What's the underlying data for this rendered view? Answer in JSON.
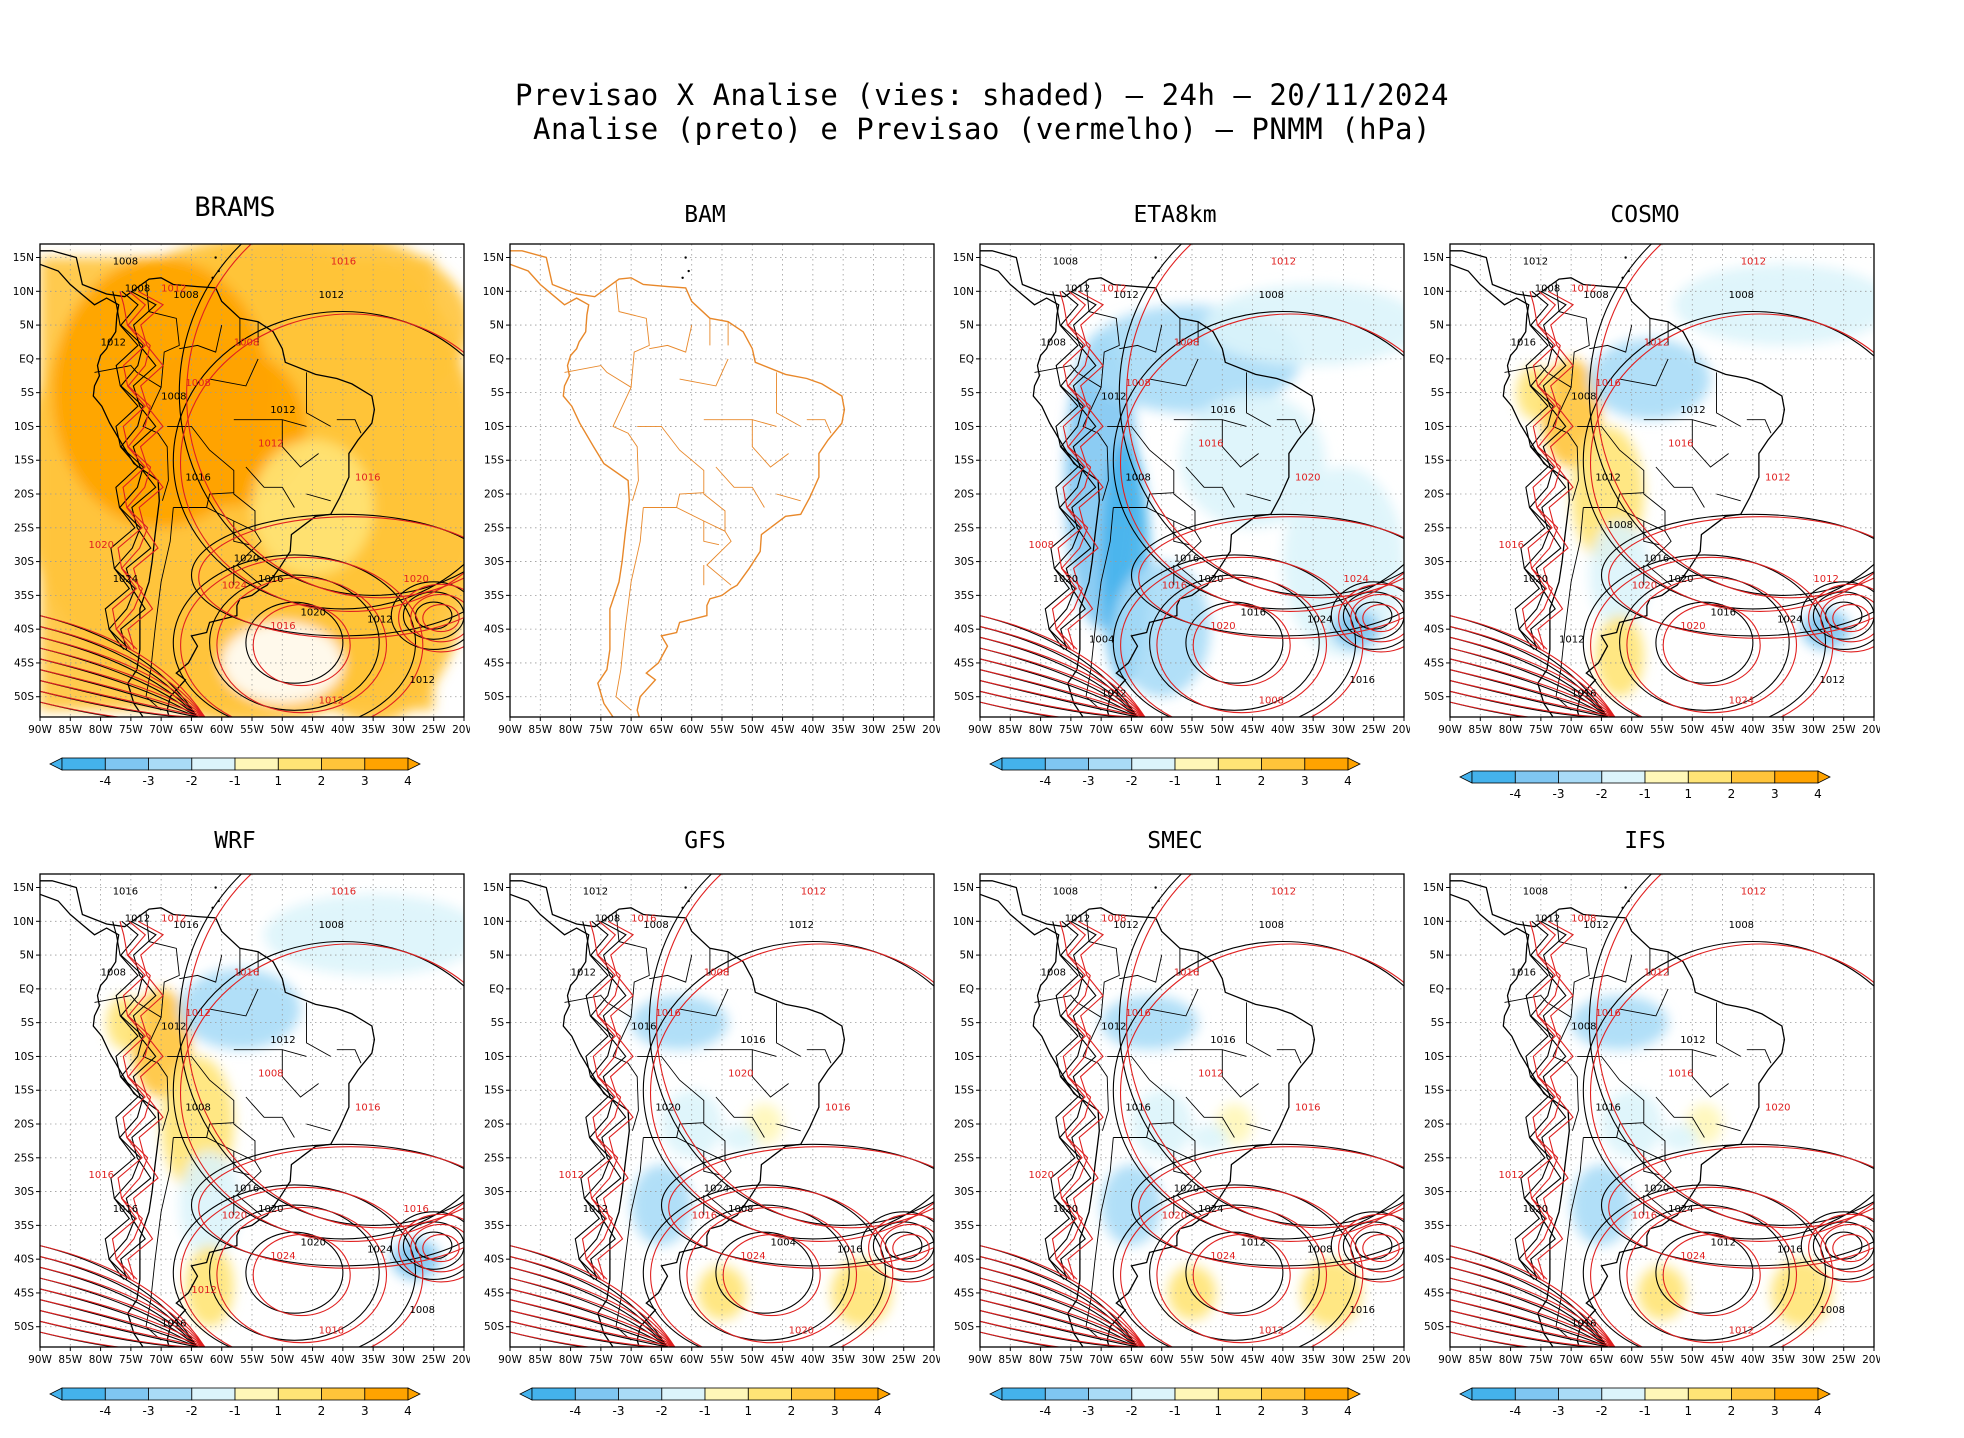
{
  "title": {
    "line1": "Previsao X Analise (vies: shaded) – 24h – 20/11/2024",
    "line2": "Analise (preto) e Previsao (vermelho) – PNMM (hPa)"
  },
  "axes": {
    "lat_labels": [
      "15N",
      "10N",
      "5N",
      "EQ",
      "5S",
      "10S",
      "15S",
      "20S",
      "25S",
      "30S",
      "35S",
      "40S",
      "45S",
      "50S"
    ],
    "lon_labels": [
      "90W",
      "85W",
      "80W",
      "75W",
      "70W",
      "65W",
      "60W",
      "55W",
      "50W",
      "45W",
      "40W",
      "35W",
      "30W",
      "25W",
      "20W"
    ]
  },
  "colorbar": {
    "ticks": [
      "-4",
      "-3",
      "-2",
      "-1",
      "1",
      "2",
      "3",
      "4"
    ],
    "colors": [
      "#44b2ec",
      "#7fc6f2",
      "#a9dbf7",
      "#dcf4fb",
      "#ffffff",
      "#fff7b8",
      "#ffe476",
      "#ffc43a",
      "#ffa300"
    ]
  },
  "contour_labels": {
    "analysis_color": "#000000",
    "forecast_color": "#e02020"
  },
  "panels": [
    {
      "id": "brams",
      "title": "BRAMS",
      "has_colorbar": true,
      "bias": "warm-strong",
      "black_labels": [
        "1008",
        "1008",
        "1008",
        "1012",
        "1012",
        "1008",
        "1012",
        "1016",
        "1020",
        "1024",
        "1016",
        "1020",
        "1012",
        "1012"
      ],
      "red_labels": [
        "1016",
        "1012",
        "1008",
        "1008",
        "1012",
        "1020",
        "1016",
        "1024",
        "1016",
        "1012",
        "1020"
      ]
    },
    {
      "id": "bam",
      "title": "BAM",
      "has_colorbar": false,
      "bias": "none",
      "black_labels": [],
      "red_labels": []
    },
    {
      "id": "eta8km",
      "title": "ETA8km",
      "has_colorbar": true,
      "bias": "cool",
      "black_labels": [
        "1008",
        "1012",
        "1012",
        "1008",
        "1008",
        "1012",
        "1016",
        "1008",
        "1016",
        "1020",
        "1020",
        "1016",
        "1024",
        "1016",
        "1012",
        "1004"
      ],
      "red_labels": [
        "1012",
        "1012",
        "1008",
        "1008",
        "1016",
        "1008",
        "1020",
        "1016",
        "1020",
        "1008",
        "1024"
      ]
    },
    {
      "id": "cosmo",
      "title": "COSMO",
      "has_colorbar": true,
      "bias": "mixed",
      "black_labels": [
        "1012",
        "1008",
        "1008",
        "1008",
        "1016",
        "1008",
        "1012",
        "1012",
        "1016",
        "1020",
        "1020",
        "1016",
        "1024",
        "1012",
        "1016",
        "1012",
        "1008"
      ],
      "red_labels": [
        "1012",
        "1012",
        "1012",
        "1016",
        "1016",
        "1016",
        "1012",
        "1020",
        "1020",
        "1024",
        "1012"
      ]
    },
    {
      "id": "wrf",
      "title": "WRF",
      "has_colorbar": true,
      "bias": "mixed",
      "black_labels": [
        "1016",
        "1012",
        "1016",
        "1008",
        "1008",
        "1012",
        "1012",
        "1008",
        "1016",
        "1016",
        "1020",
        "1020",
        "1024",
        "1008",
        "1016"
      ],
      "red_labels": [
        "1016",
        "1012",
        "1016",
        "1012",
        "1008",
        "1016",
        "1016",
        "1020",
        "1024",
        "1016",
        "1016",
        "1012"
      ]
    },
    {
      "id": "gfs",
      "title": "GFS",
      "has_colorbar": true,
      "bias": "weak",
      "black_labels": [
        "1012",
        "1008",
        "1008",
        "1012",
        "1012",
        "1016",
        "1016",
        "1020",
        "1024",
        "1012",
        "1008",
        "1004",
        "1016"
      ],
      "red_labels": [
        "1012",
        "1016",
        "1008",
        "1016",
        "1020",
        "1012",
        "1016",
        "1016",
        "1024",
        "1020"
      ]
    },
    {
      "id": "smec",
      "title": "SMEC",
      "has_colorbar": true,
      "bias": "weak",
      "black_labels": [
        "1008",
        "1012",
        "1012",
        "1008",
        "1008",
        "1012",
        "1016",
        "1016",
        "1020",
        "1020",
        "1024",
        "1012",
        "1008",
        "1016"
      ],
      "red_labels": [
        "1012",
        "1008",
        "1016",
        "1016",
        "1012",
        "1020",
        "1016",
        "1020",
        "1024",
        "1012"
      ]
    },
    {
      "id": "ifs",
      "title": "IFS",
      "has_colorbar": true,
      "bias": "weak",
      "black_labels": [
        "1008",
        "1012",
        "1012",
        "1008",
        "1016",
        "1008",
        "1012",
        "1016",
        "1020",
        "1020",
        "1024",
        "1012",
        "1016",
        "1008",
        "1016"
      ],
      "red_labels": [
        "1012",
        "1008",
        "1012",
        "1016",
        "1016",
        "1012",
        "1020",
        "1016",
        "1024",
        "1012"
      ]
    }
  ]
}
